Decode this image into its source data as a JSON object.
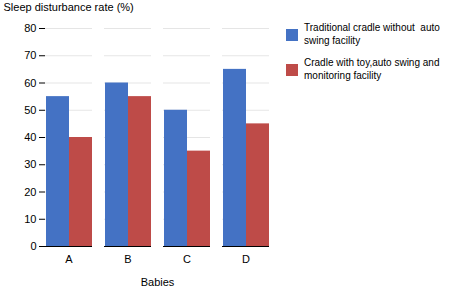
{
  "chart_data": {
    "type": "bar",
    "categories": [
      "A",
      "B",
      "C",
      "D"
    ],
    "series": [
      {
        "name": "Traditional cradle without  auto\nswing facility",
        "color": "#4472C4",
        "values": [
          55,
          60,
          50,
          65
        ]
      },
      {
        "name": "Cradle with toy,auto swing and\nmonitoring facility",
        "color": "#BE4B48",
        "values": [
          40,
          55,
          35,
          45
        ]
      }
    ],
    "xlabel": "Babies",
    "ylabel": "Sleep disturbance rate (%)",
    "ylim": [
      0,
      80
    ],
    "yticks": [
      0,
      10,
      20,
      30,
      40,
      50,
      60,
      70,
      80
    ],
    "grid": true,
    "legend": "right"
  }
}
